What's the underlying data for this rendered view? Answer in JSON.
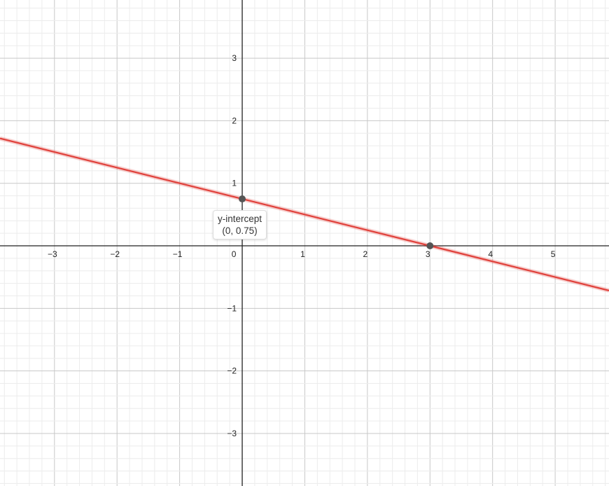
{
  "chart_data": {
    "type": "line",
    "xlim": [
      -3.87,
      5.86
    ],
    "ylim": [
      -3.84,
      3.93
    ],
    "grid": true,
    "major_step": 1,
    "minor_step": 0.2,
    "x_ticks": [
      -3,
      -2,
      -1,
      0,
      1,
      2,
      3,
      4,
      5
    ],
    "y_ticks": [
      -3,
      -2,
      -1,
      1,
      2,
      3
    ],
    "x_tick_labels": [
      "−3",
      "−2",
      "−1",
      "0",
      "1",
      "2",
      "3",
      "4",
      "5"
    ],
    "y_tick_labels": [
      "−3",
      "−2",
      "−1",
      "1",
      "2",
      "3"
    ],
    "series": [
      {
        "slope": -0.25,
        "intercept": 0.75,
        "color": "#e0413b"
      }
    ],
    "points": [
      {
        "x": 0,
        "y": 0.75,
        "color": "#555555"
      },
      {
        "x": 3,
        "y": 0,
        "color": "#555555"
      }
    ],
    "annotation": {
      "title": "y-intercept",
      "coords": "(0, 0.75)",
      "x": 0,
      "y": 0.75
    }
  }
}
